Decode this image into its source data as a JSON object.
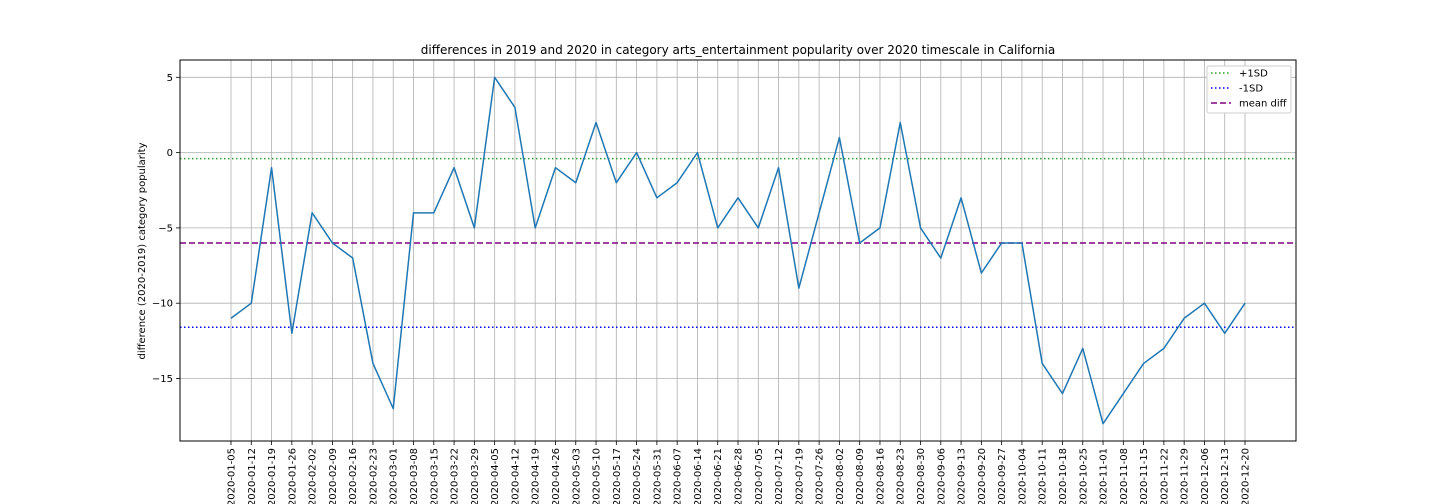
{
  "chart_data": {
    "type": "line",
    "title": "differences in 2019 and 2020 in category arts_entertainment popularity over 2020 timescale in California",
    "xlabel": "",
    "ylabel": "difference (2020-2019) category popularity",
    "ylim": [
      -19.15,
      6.15
    ],
    "yticks": [
      5,
      0,
      -5,
      -10,
      -15
    ],
    "ytick_labels": [
      "5",
      "0",
      "−5",
      "−10",
      "−15"
    ],
    "grid": true,
    "legend_position": "top-right",
    "x": [
      "2020-01-05",
      "2020-01-12",
      "2020-01-19",
      "2020-01-26",
      "2020-02-02",
      "2020-02-09",
      "2020-02-16",
      "2020-02-23",
      "2020-03-01",
      "2020-03-08",
      "2020-03-15",
      "2020-03-22",
      "2020-03-29",
      "2020-04-05",
      "2020-04-12",
      "2020-04-19",
      "2020-04-26",
      "2020-05-03",
      "2020-05-10",
      "2020-05-17",
      "2020-05-24",
      "2020-05-31",
      "2020-06-07",
      "2020-06-14",
      "2020-06-21",
      "2020-06-28",
      "2020-07-05",
      "2020-07-12",
      "2020-07-19",
      "2020-07-26",
      "2020-08-02",
      "2020-08-09",
      "2020-08-16",
      "2020-08-23",
      "2020-08-30",
      "2020-09-06",
      "2020-09-13",
      "2020-09-20",
      "2020-09-27",
      "2020-10-04",
      "2020-10-11",
      "2020-10-18",
      "2020-10-25",
      "2020-11-01",
      "2020-11-08",
      "2020-11-15",
      "2020-11-22",
      "2020-11-29",
      "2020-12-06",
      "2020-12-13",
      "2020-12-20"
    ],
    "series": [
      {
        "values": [
          -11,
          -10,
          -1,
          -12,
          -4,
          -6,
          -7,
          -14,
          -17,
          -4,
          -4,
          -1,
          -5,
          5,
          3,
          -5,
          -1,
          -2,
          2,
          -2,
          0,
          -3,
          -2,
          0,
          -5,
          -3,
          -5,
          -1,
          -9,
          -4,
          1,
          -6,
          -5,
          2,
          -5,
          -7,
          -3,
          -8,
          -6,
          -6,
          -14,
          -16,
          -13,
          -18,
          -16,
          -14,
          -13,
          -11,
          -10,
          -12,
          -10
        ],
        "color": "#1f77b4"
      }
    ],
    "reference_lines": [
      {
        "name": "+1SD",
        "value": -0.4,
        "color": "#2ca02c",
        "style": "dotted"
      },
      {
        "name": "-1SD",
        "value": -11.6,
        "color": "#0000ff",
        "style": "dotted"
      },
      {
        "name": "mean diff",
        "value": -6.0,
        "color": "#800080",
        "style": "dashed"
      }
    ]
  }
}
